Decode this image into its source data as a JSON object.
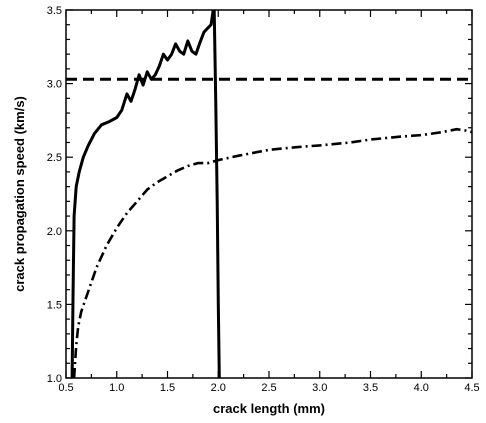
{
  "chart_data": {
    "type": "line",
    "title": "",
    "xlabel": "crack length (mm)",
    "ylabel": "crack propagation speed (km/s)",
    "xlim": [
      0.5,
      4.5
    ],
    "ylim": [
      1.0,
      3.5
    ],
    "xticks": [
      "0.5",
      "1.0",
      "1.5",
      "2.0",
      "2.5",
      "3.0",
      "3.5",
      "4.0",
      "4.5"
    ],
    "yticks": [
      "1.0",
      "1.5",
      "2.0",
      "2.5",
      "3.0",
      "3.5"
    ],
    "grid": false,
    "legend": "none",
    "series": [
      {
        "style": "solid",
        "color": "#000000",
        "x": [
          0.56,
          0.57,
          0.58,
          0.6,
          0.63,
          0.67,
          0.72,
          0.78,
          0.85,
          0.92,
          1.0,
          1.05,
          1.1,
          1.14,
          1.18,
          1.22,
          1.26,
          1.3,
          1.34,
          1.38,
          1.42,
          1.46,
          1.5,
          1.54,
          1.58,
          1.62,
          1.66,
          1.7,
          1.74,
          1.78,
          1.82,
          1.86,
          1.9,
          1.93,
          1.95,
          1.96,
          1.975,
          1.99,
          2.0,
          2.01
        ],
        "y": [
          1.0,
          1.6,
          2.1,
          2.3,
          2.4,
          2.5,
          2.58,
          2.66,
          2.72,
          2.74,
          2.77,
          2.82,
          2.93,
          2.88,
          2.96,
          3.06,
          2.99,
          3.08,
          3.03,
          3.06,
          3.12,
          3.2,
          3.16,
          3.2,
          3.27,
          3.22,
          3.2,
          3.29,
          3.22,
          3.2,
          3.28,
          3.35,
          3.38,
          3.4,
          3.5,
          3.5,
          2.9,
          2.2,
          1.5,
          1.0
        ]
      },
      {
        "style": "dash",
        "color": "#000000",
        "x": [
          0.5,
          4.5
        ],
        "y": [
          3.03,
          3.03
        ]
      },
      {
        "style": "dashdot",
        "color": "#000000",
        "x": [
          0.58,
          0.6,
          0.62,
          0.65,
          0.7,
          0.75,
          0.8,
          0.9,
          1.0,
          1.1,
          1.2,
          1.3,
          1.4,
          1.5,
          1.6,
          1.7,
          1.8,
          1.9,
          2.0,
          2.2,
          2.5,
          2.8,
          3.0,
          3.3,
          3.5,
          3.8,
          4.0,
          4.2,
          4.35,
          4.45,
          4.5
        ],
        "y": [
          1.0,
          1.22,
          1.35,
          1.45,
          1.55,
          1.65,
          1.75,
          1.9,
          2.02,
          2.12,
          2.2,
          2.28,
          2.33,
          2.37,
          2.41,
          2.44,
          2.46,
          2.46,
          2.48,
          2.51,
          2.55,
          2.57,
          2.58,
          2.6,
          2.62,
          2.64,
          2.65,
          2.67,
          2.69,
          2.68,
          2.67
        ]
      }
    ]
  }
}
